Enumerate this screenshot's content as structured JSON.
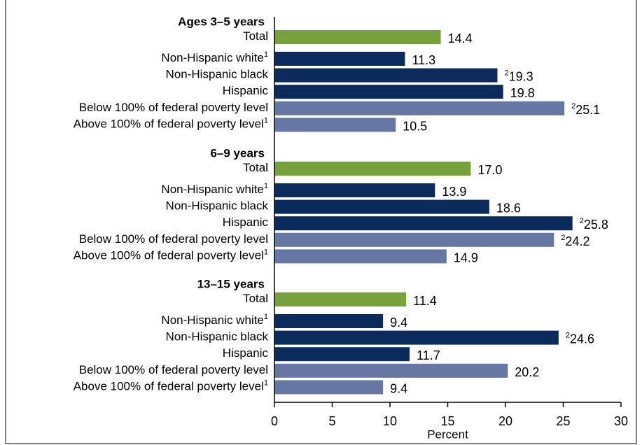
{
  "chart_data": {
    "type": "grouped-hbar",
    "x_label": "Percent",
    "xlim": [
      0,
      30
    ],
    "xticks": [
      0,
      5,
      10,
      15,
      20,
      25,
      30
    ],
    "groups": [
      {
        "name": "Ages 3–5 years",
        "categories": [
          "Total",
          "Non-Hispanic white",
          "Non-Hispanic black",
          "Hispanic",
          "Below 100% of federal poverty level",
          "Above 100% of federal poverty level"
        ],
        "category_notes": [
          null,
          "1",
          null,
          null,
          null,
          "1"
        ],
        "values": [
          14.4,
          11.3,
          19.3,
          19.8,
          25.1,
          10.5
        ],
        "value_notes": [
          null,
          null,
          "2",
          null,
          "2",
          null
        ],
        "colors": [
          "#77a23b",
          "#0c2b5d",
          "#0c2b5d",
          "#0c2b5d",
          "#6777a4",
          "#6777a4"
        ]
      },
      {
        "name": "6–9 years",
        "categories": [
          "Total",
          "Non-Hispanic white",
          "Non-Hispanic black",
          "Hispanic",
          "Below 100% of federal poverty level",
          "Above 100% of federal poverty level"
        ],
        "category_notes": [
          null,
          "1",
          null,
          null,
          null,
          "1"
        ],
        "values": [
          17.0,
          13.9,
          18.6,
          25.8,
          24.2,
          14.9
        ],
        "value_labels": [
          "17.0",
          "13.9",
          "18.6",
          "25.8",
          "24.2",
          "14.9"
        ],
        "value_notes": [
          null,
          null,
          null,
          "2",
          "2",
          null
        ],
        "colors": [
          "#77a23b",
          "#0c2b5d",
          "#0c2b5d",
          "#0c2b5d",
          "#6777a4",
          "#6777a4"
        ]
      },
      {
        "name": "13–15 years",
        "categories": [
          "Total",
          "Non-Hispanic white",
          "Non-Hispanic black",
          "Hispanic",
          "Below 100% of federal poverty level",
          "Above 100% of federal poverty level"
        ],
        "category_notes": [
          null,
          "1",
          null,
          null,
          null,
          "1"
        ],
        "values": [
          11.4,
          9.4,
          24.6,
          11.7,
          20.2,
          9.4
        ],
        "value_notes": [
          null,
          null,
          "2",
          null,
          null,
          null
        ],
        "colors": [
          "#77a23b",
          "#0c2b5d",
          "#0c2b5d",
          "#0c2b5d",
          "#6777a4",
          "#6777a4"
        ]
      }
    ]
  }
}
